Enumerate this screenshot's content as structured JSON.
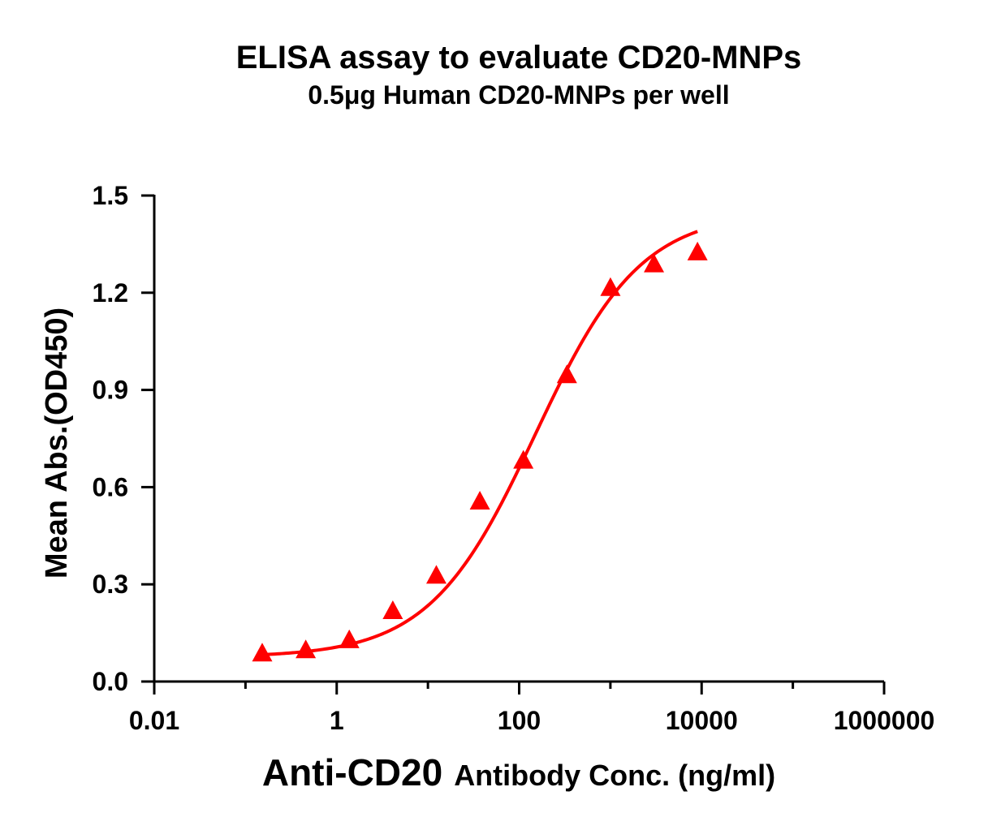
{
  "colors": {
    "series": "#ff0000",
    "axis": "#000000",
    "background": "#ffffff"
  },
  "chart_data": {
    "type": "scatter",
    "title": "ELISA assay to evaluate CD20-MNPs",
    "subtitle": "0.5μg Human CD20-MNPs per well",
    "xlabel_prefix": "Anti-CD20",
    "xlabel_suffix": "Antibody Conc. (ng/ml)",
    "ylabel": "Mean Abs.(OD450)",
    "x_scale": "log",
    "xlim": [
      0.01,
      1000000
    ],
    "ylim": [
      0,
      1.5
    ],
    "x_ticks": [
      0.01,
      1,
      100,
      10000,
      1000000
    ],
    "x_tick_labels": [
      "0.01",
      "1",
      "100",
      "10000",
      "1000000"
    ],
    "y_ticks": [
      0,
      0.3,
      0.6,
      0.9,
      1.2,
      1.5
    ],
    "y_tick_labels": [
      "0.0",
      "0.3",
      "0.6",
      "0.9",
      "1.2",
      "1.5"
    ],
    "grid": false,
    "legend": "none",
    "marker": "triangle",
    "series": [
      {
        "x": [
          0.1526,
          0.4578,
          1.3733,
          4.12,
          12.36,
          37.08,
          111.2,
          333.7,
          1001,
          3003,
          9009
        ],
        "y": [
          0.087,
          0.097,
          0.128,
          0.218,
          0.327,
          0.556,
          0.682,
          0.946,
          1.215,
          1.288,
          1.325
        ]
      }
    ],
    "fit_curve": {
      "model": "4PL",
      "bottom": 0.075,
      "top": 1.45,
      "ec50": 150,
      "hill": 0.75,
      "x_range": [
        0.1526,
        9009
      ]
    }
  }
}
